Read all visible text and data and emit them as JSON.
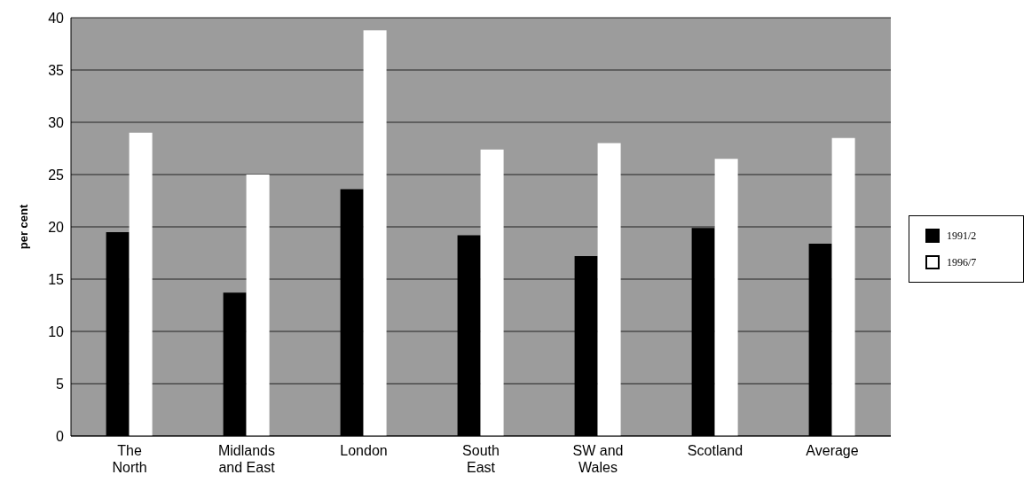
{
  "chart_data": {
    "type": "bar",
    "ylabel": "per cent",
    "categories": [
      "The North",
      "Midlands and East",
      "London",
      "South East",
      "SW and Wales",
      "Scotland",
      "Average"
    ],
    "series": [
      {
        "name": "1991/2",
        "color": "#000000",
        "values": [
          19.5,
          13.7,
          23.6,
          19.2,
          17.2,
          19.9,
          18.4
        ]
      },
      {
        "name": "1996/7",
        "color": "#ffffff",
        "values": [
          29.0,
          25.0,
          38.8,
          27.4,
          28.0,
          26.5,
          28.5
        ]
      }
    ],
    "ylim": [
      0,
      40
    ],
    "yticks": [
      0,
      5,
      10,
      15,
      20,
      25,
      30,
      35,
      40
    ],
    "grid": "y",
    "legend": "right"
  }
}
